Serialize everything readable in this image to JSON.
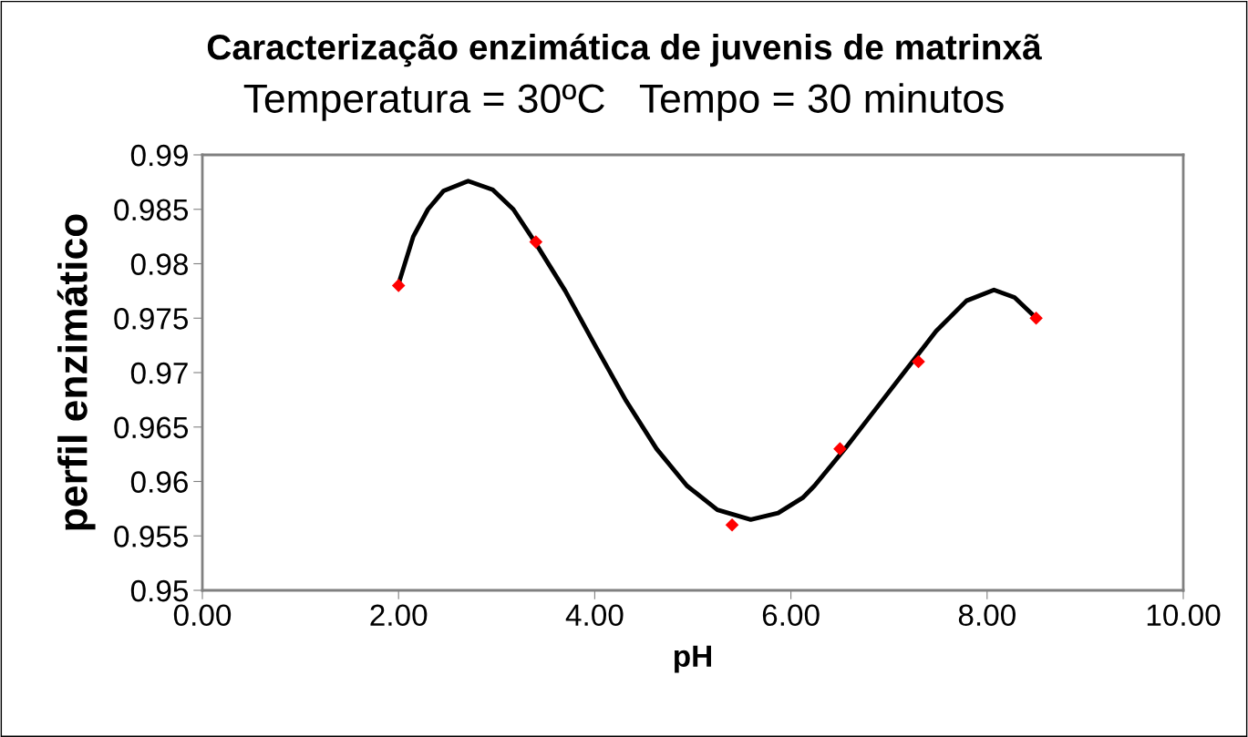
{
  "chart_data": {
    "type": "scatter",
    "title": "Caracterização enzimática de juvenis de matrinxã",
    "subtitle": "Temperatura = 30ºC   Tempo = 30 minutos",
    "xlabel": "pH",
    "ylabel": "perfil enzimático",
    "series": [
      {
        "type": "line",
        "color": "#000000",
        "marker": "none",
        "line_style": "solid",
        "x": [
          1.995,
          2.15,
          2.3,
          2.46,
          2.71,
          2.96,
          3.17,
          3.39,
          3.7,
          4.01,
          4.32,
          4.63,
          4.94,
          5.25,
          5.59,
          5.87,
          6.12,
          6.24,
          6.55,
          6.86,
          7.17,
          7.48,
          7.79,
          8.07,
          8.28,
          8.49
        ],
        "values": [
          0.978,
          0.9825,
          0.985,
          0.9867,
          0.9876,
          0.9868,
          0.985,
          0.982,
          0.9775,
          0.9724,
          0.9674,
          0.963,
          0.9596,
          0.9574,
          0.9565,
          0.9571,
          0.9585,
          0.9596,
          0.963,
          0.9666,
          0.9702,
          0.9738,
          0.9766,
          0.9776,
          0.9769,
          0.9751
        ]
      },
      {
        "color": "#ff0000",
        "marker": "diamond",
        "x": [
          2.0,
          3.4,
          5.4,
          6.5,
          7.3,
          8.5
        ],
        "values": [
          0.978,
          0.982,
          0.956,
          0.963,
          0.971,
          0.975
        ]
      }
    ],
    "xlim": [
      0,
      10
    ],
    "xticks": [
      {
        "value": 0,
        "label": "0.00"
      },
      {
        "value": 2,
        "label": "2.00"
      },
      {
        "value": 4,
        "label": "4.00"
      },
      {
        "value": 6,
        "label": "6.00"
      },
      {
        "value": 8,
        "label": "8.00"
      },
      {
        "value": 10,
        "label": "10.00"
      }
    ],
    "ylim": [
      0.95,
      0.99
    ],
    "yticks": [
      0.95,
      0.955,
      0.96,
      0.965,
      0.97,
      0.975,
      0.98,
      0.985,
      0.99
    ],
    "grid": false,
    "legend": false
  }
}
